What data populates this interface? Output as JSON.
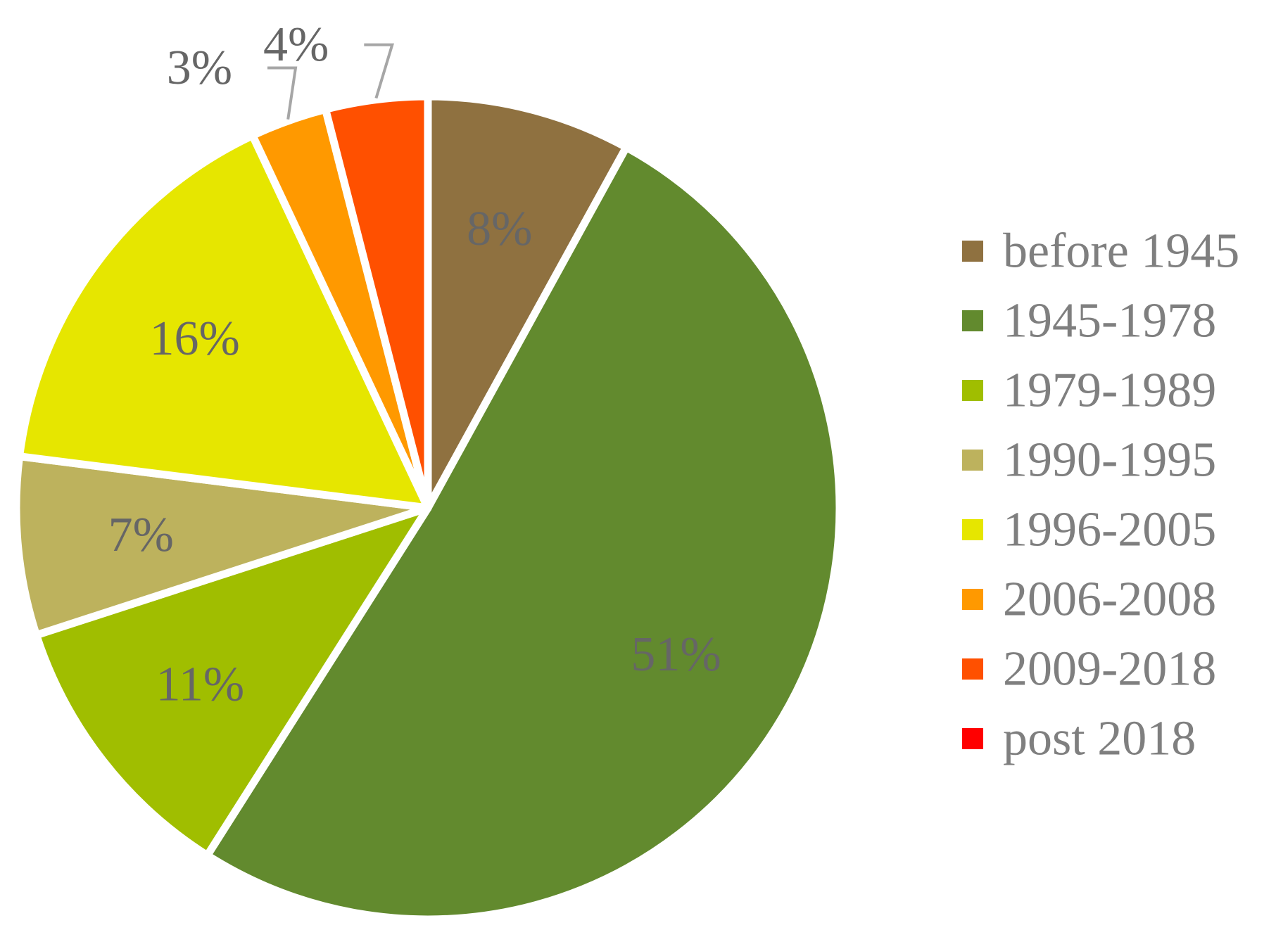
{
  "chart_data": {
    "type": "pie",
    "title": "",
    "legend_position": "right",
    "slices": [
      {
        "label": "before 1945",
        "value": 8,
        "display": "8%",
        "color": "#8f7140"
      },
      {
        "label": "1945-1978",
        "value": 51,
        "display": "51%",
        "color": "#628a2e"
      },
      {
        "label": "1979-1989",
        "value": 11,
        "display": "11%",
        "color": "#a0be00"
      },
      {
        "label": "1990-1995",
        "value": 7,
        "display": "7%",
        "color": "#bdb25d"
      },
      {
        "label": "1996-2005",
        "value": 16,
        "display": "16%",
        "color": "#e6e600"
      },
      {
        "label": "2006-2008",
        "value": 3,
        "display": "3%",
        "color": "#ff9900"
      },
      {
        "label": "2009-2018",
        "value": 4,
        "display": "4%",
        "color": "#ff5000"
      },
      {
        "label": "post 2018",
        "value": 0,
        "display": "",
        "color": "#ff0000"
      }
    ]
  }
}
